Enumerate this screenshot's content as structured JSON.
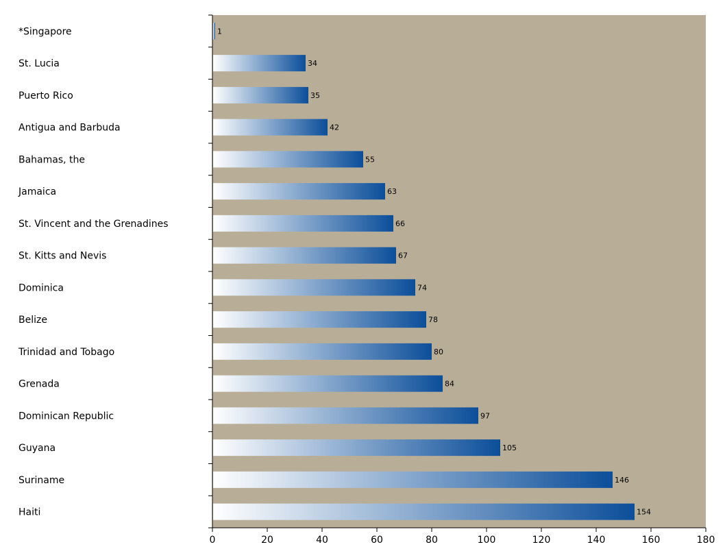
{
  "chart_data": {
    "type": "bar",
    "orientation": "horizontal",
    "categories": [
      "*Singapore",
      "St. Lucia",
      "Puerto Rico",
      "Antigua and Barbuda",
      "Bahamas, the",
      "Jamaica",
      "St. Vincent and the Grenadines",
      "St. Kitts and Nevis",
      "Dominica",
      "Belize",
      "Trinidad and Tobago",
      "Grenada",
      "Dominican Republic",
      "Guyana",
      "Suriname",
      "Haiti"
    ],
    "values": [
      1,
      34,
      35,
      42,
      55,
      63,
      66,
      67,
      74,
      78,
      80,
      84,
      97,
      105,
      146,
      154
    ],
    "value_labels": [
      "1",
      "34",
      "35",
      "42",
      "55",
      "63",
      "66",
      "67",
      "74",
      "78",
      "80",
      "84",
      "97",
      "105",
      "146",
      "154"
    ],
    "xlim": [
      0,
      180
    ],
    "xticks": [
      "0",
      "20",
      "40",
      "60",
      "80",
      "100",
      "120",
      "140",
      "160",
      "180"
    ],
    "title": "",
    "xlabel": "",
    "ylabel": "",
    "grid": false,
    "legend": "none",
    "colors": {
      "plot_background": "#b8ae97",
      "bar_start": "#ffffff",
      "bar_end": "#0b4e9a",
      "axis": "#000000"
    }
  }
}
